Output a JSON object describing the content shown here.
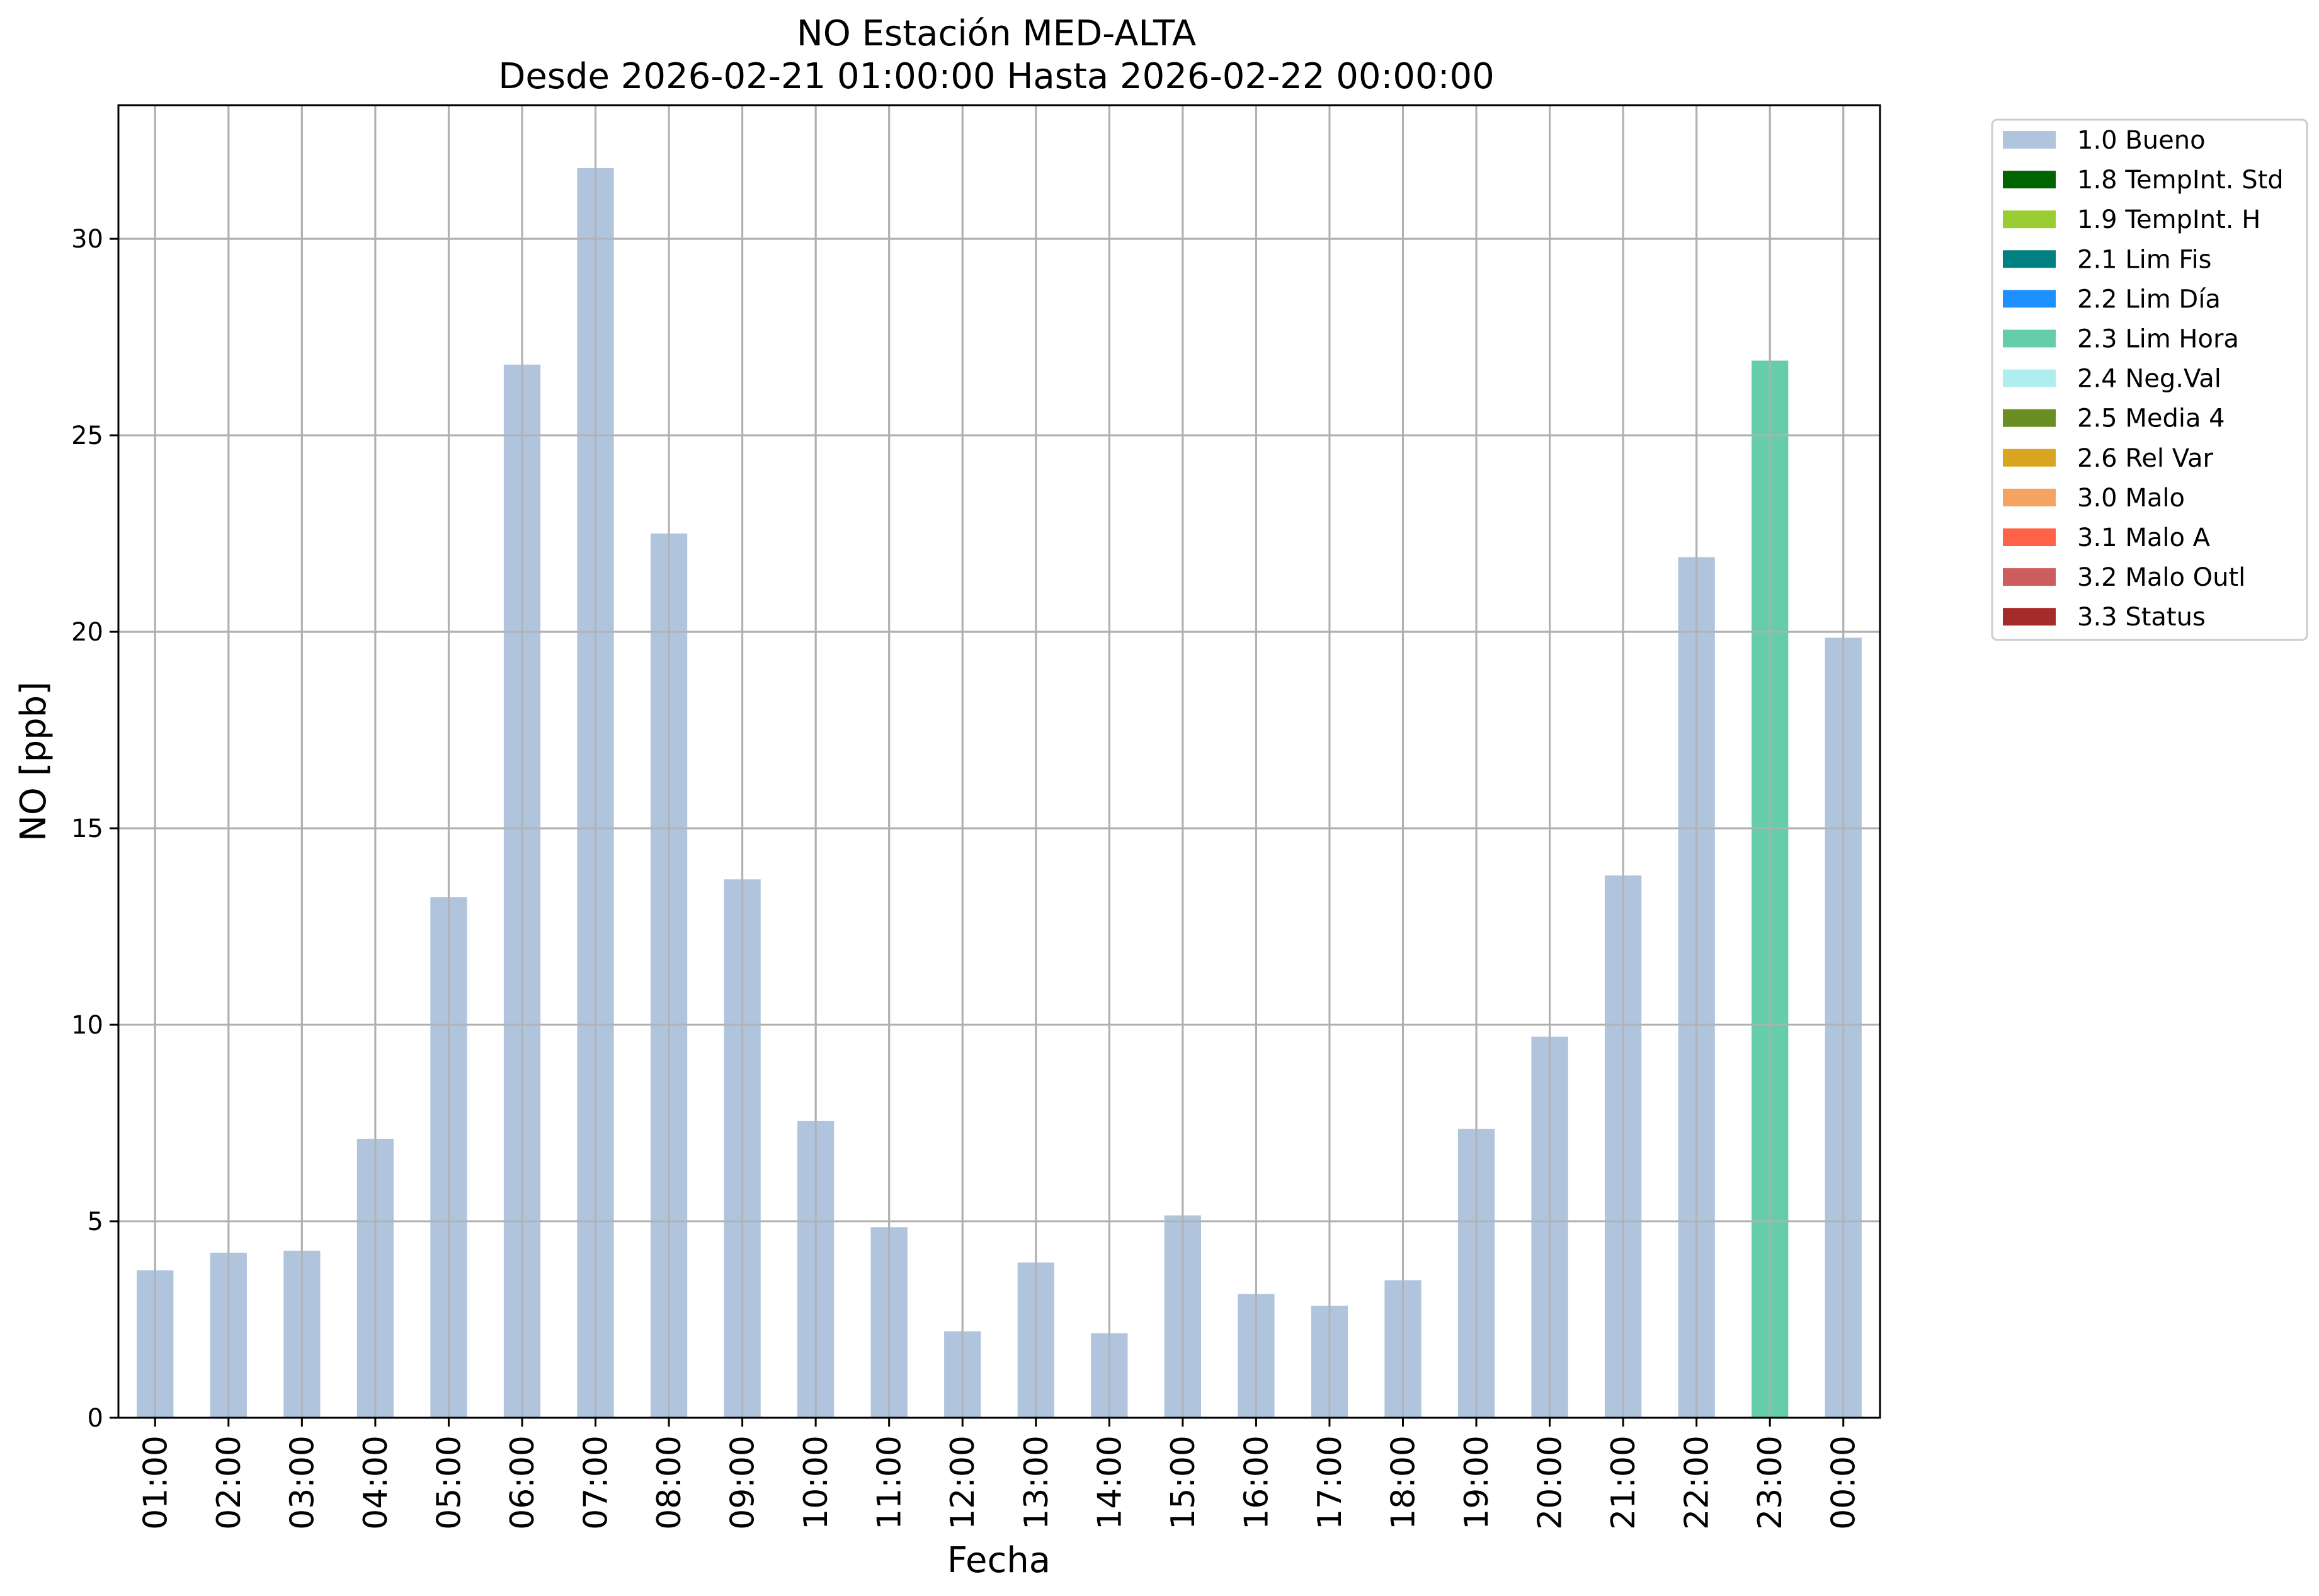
{
  "chart_data": {
    "type": "bar",
    "title": "NO Estación MED-ALTA",
    "subtitle": "Desde 2026-02-21 01:00:00 Hasta 2026-02-22 00:00:00",
    "xlabel": "Fecha",
    "ylabel": "NO [ppb]",
    "ylim": [
      0,
      33.4
    ],
    "yticks": [
      0,
      5,
      10,
      15,
      20,
      25,
      30
    ],
    "grid": true,
    "legend_placement": "outside-top-right",
    "categories": [
      "01:00",
      "02:00",
      "03:00",
      "04:00",
      "05:00",
      "06:00",
      "07:00",
      "08:00",
      "09:00",
      "10:00",
      "11:00",
      "12:00",
      "13:00",
      "14:00",
      "15:00",
      "16:00",
      "17:00",
      "18:00",
      "19:00",
      "20:00",
      "21:00",
      "22:00",
      "23:00",
      "00:00"
    ],
    "values": [
      3.75,
      4.2,
      4.25,
      7.1,
      13.25,
      26.8,
      31.8,
      22.5,
      13.7,
      7.55,
      4.85,
      2.2,
      3.95,
      2.15,
      5.15,
      3.15,
      2.85,
      3.5,
      7.35,
      9.7,
      13.8,
      21.9,
      26.9,
      19.85
    ],
    "flags": [
      "1.0 Bueno",
      "1.0 Bueno",
      "1.0 Bueno",
      "1.0 Bueno",
      "1.0 Bueno",
      "1.0 Bueno",
      "1.0 Bueno",
      "1.0 Bueno",
      "1.0 Bueno",
      "1.0 Bueno",
      "1.0 Bueno",
      "1.0 Bueno",
      "1.0 Bueno",
      "1.0 Bueno",
      "1.0 Bueno",
      "1.0 Bueno",
      "1.0 Bueno",
      "1.0 Bueno",
      "1.0 Bueno",
      "1.0 Bueno",
      "1.0 Bueno",
      "1.0 Bueno",
      "2.3 Lim Hora",
      "1.0 Bueno"
    ],
    "legend": [
      {
        "label": "1.0 Bueno",
        "color": "#b0c4de"
      },
      {
        "label": "1.8 TempInt. Std",
        "color": "#006400"
      },
      {
        "label": "1.9 TempInt. H",
        "color": "#9acd32"
      },
      {
        "label": "2.1 Lim Fis",
        "color": "#008080"
      },
      {
        "label": "2.2 Lim Día",
        "color": "#1e90ff"
      },
      {
        "label": "2.3 Lim Hora",
        "color": "#66cdaa"
      },
      {
        "label": "2.4 Neg.Val",
        "color": "#afeeee"
      },
      {
        "label": "2.5 Media 4",
        "color": "#6b8e23"
      },
      {
        "label": "2.6 Rel Var",
        "color": "#daa520"
      },
      {
        "label": "3.0 Malo",
        "color": "#f4a460"
      },
      {
        "label": "3.1 Malo A",
        "color": "#ff6347"
      },
      {
        "label": "3.2 Malo Outl",
        "color": "#cd5c5c"
      },
      {
        "label": "3.3 Status",
        "color": "#a52a2a"
      }
    ]
  }
}
